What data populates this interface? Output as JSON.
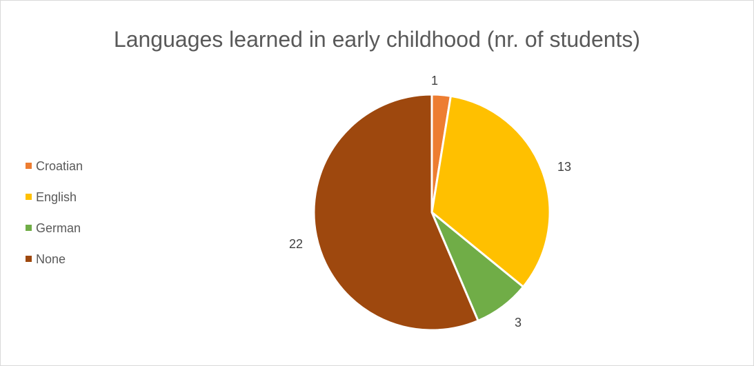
{
  "chart_data": {
    "type": "pie",
    "title": "Languages learned in early childhood (nr. of students)",
    "categories": [
      "Croatian",
      "English",
      "German",
      "None"
    ],
    "values": [
      1,
      13,
      3,
      22
    ],
    "colors": [
      "#ed7d31",
      "#ffc000",
      "#70ad47",
      "#9e480e"
    ],
    "data_labels": [
      "1",
      "13",
      "3",
      "22"
    ],
    "legend_position": "left"
  }
}
